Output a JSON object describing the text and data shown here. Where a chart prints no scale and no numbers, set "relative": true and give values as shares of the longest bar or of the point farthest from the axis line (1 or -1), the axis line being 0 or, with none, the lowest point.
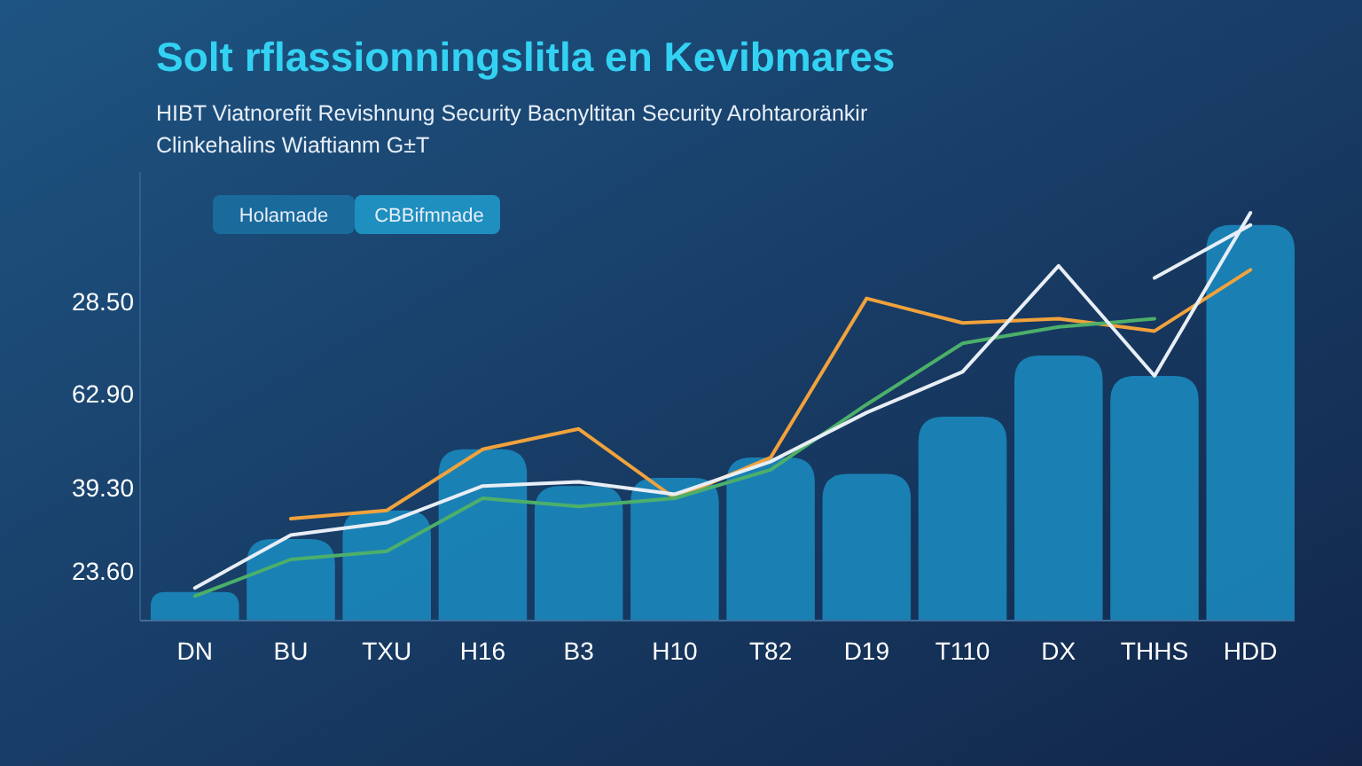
{
  "chart_data": {
    "type": "bar",
    "title": "Solt rflassionningslitla en Kevibmares",
    "subtitle": "HIBT Viatnorefit Revishnung Security Bacnyltitan Security Arohtaroränkir\nClinkehalins Wiaftianm G±T",
    "annotations": [
      "Holamade",
      "CBBifmnade",
      "28.50",
      "62.90",
      "39.30",
      "23.60"
    ],
    "categories": [
      "DN",
      "BU",
      "TXU",
      "H16",
      "B3",
      "H10",
      "T82",
      "D19",
      "T110",
      "DX",
      "THHS",
      "HDD"
    ],
    "relative": true,
    "series": [
      {
        "color": "#1b8dc2",
        "values": [
          0.07,
          0.2,
          0.27,
          0.42,
          0.33,
          0.35,
          0.4,
          0.36,
          0.5,
          0.65,
          0.6,
          0.97
        ]
      },
      {
        "type": "line",
        "color": "#f0a23c",
        "values": [
          null,
          0.25,
          0.27,
          0.42,
          0.47,
          0.3,
          0.4,
          0.79,
          0.73,
          0.74,
          0.71,
          0.86
        ]
      },
      {
        "type": "line",
        "color": "#4caf6a",
        "values": [
          0.06,
          0.15,
          0.17,
          0.3,
          0.28,
          0.3,
          0.37,
          0.53,
          0.68,
          0.72,
          0.74,
          null
        ]
      },
      {
        "type": "line",
        "color": "#e8eef5",
        "values": [
          0.08,
          0.21,
          0.24,
          0.33,
          0.34,
          0.31,
          0.39,
          0.51,
          0.61,
          0.87,
          0.6,
          1.0
        ]
      },
      {
        "type": "line",
        "color": "#e8eef5",
        "values": [
          null,
          null,
          null,
          null,
          null,
          null,
          null,
          null,
          null,
          null,
          0.84,
          0.97
        ]
      }
    ],
    "line_style": "solid",
    "marker": "none"
  }
}
